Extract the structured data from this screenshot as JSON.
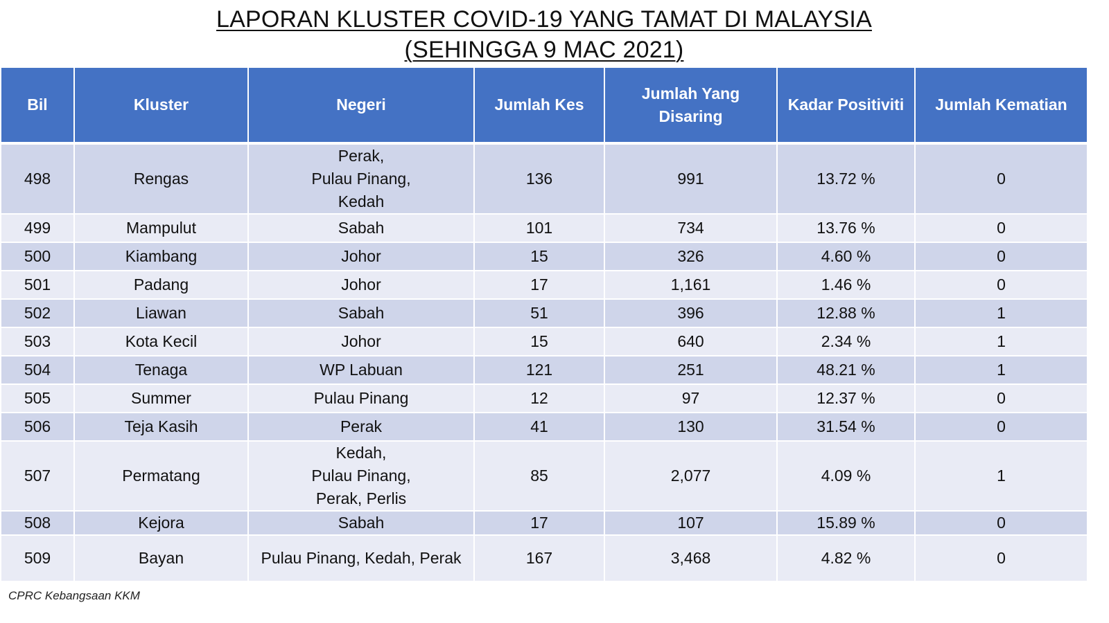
{
  "title": {
    "line1": "LAPORAN KLUSTER COVID-19 YANG TAMAT DI MALAYSIA",
    "line2": "(SEHINGGA 9 MAC 2021)"
  },
  "colors": {
    "header_bg": "#4472c4",
    "row_odd": "#cfd5ea",
    "row_even": "#e9ebf5"
  },
  "table": {
    "headers": {
      "bil": "Bil",
      "kluster": "Kluster",
      "negeri": "Negeri",
      "jumlah_kes": "Jumlah Kes",
      "jumlah_disaring_1": "Jumlah Yang",
      "jumlah_disaring_2": "Disaring",
      "kadar_positiviti": "Kadar Positiviti",
      "jumlah_kematian": "Jumlah Kematian"
    },
    "rows": [
      {
        "bil": "498",
        "kluster": "Rengas",
        "negeri": [
          "Perak,",
          "Pulau Pinang,",
          "Kedah"
        ],
        "kes": "136",
        "disaring": "991",
        "positiviti": "13.72 %",
        "kematian": "0"
      },
      {
        "bil": "499",
        "kluster": "Mampulut",
        "negeri": [
          "Sabah"
        ],
        "kes": "101",
        "disaring": "734",
        "positiviti": "13.76 %",
        "kematian": "0"
      },
      {
        "bil": "500",
        "kluster": "Kiambang",
        "negeri": [
          "Johor"
        ],
        "kes": "15",
        "disaring": "326",
        "positiviti": "4.60 %",
        "kematian": "0"
      },
      {
        "bil": "501",
        "kluster": "Padang",
        "negeri": [
          "Johor"
        ],
        "kes": "17",
        "disaring": "1,161",
        "positiviti": "1.46 %",
        "kematian": "0"
      },
      {
        "bil": "502",
        "kluster": "Liawan",
        "negeri": [
          "Sabah"
        ],
        "kes": "51",
        "disaring": "396",
        "positiviti": "12.88 %",
        "kematian": "1"
      },
      {
        "bil": "503",
        "kluster": "Kota Kecil",
        "negeri": [
          "Johor"
        ],
        "kes": "15",
        "disaring": "640",
        "positiviti": "2.34 %",
        "kematian": "1"
      },
      {
        "bil": "504",
        "kluster": "Tenaga",
        "negeri": [
          "WP Labuan"
        ],
        "kes": "121",
        "disaring": "251",
        "positiviti": "48.21 %",
        "kematian": "1"
      },
      {
        "bil": "505",
        "kluster": "Summer",
        "negeri": [
          "Pulau Pinang"
        ],
        "kes": "12",
        "disaring": "97",
        "positiviti": "12.37 %",
        "kematian": "0"
      },
      {
        "bil": "506",
        "kluster": "Teja Kasih",
        "negeri": [
          "Perak"
        ],
        "kes": "41",
        "disaring": "130",
        "positiviti": "31.54 %",
        "kematian": "0"
      },
      {
        "bil": "507",
        "kluster": "Permatang",
        "negeri": [
          "Kedah,",
          "Pulau Pinang,",
          "Perak, Perlis"
        ],
        "kes": "85",
        "disaring": "2,077",
        "positiviti": "4.09 %",
        "kematian": "1"
      },
      {
        "bil": "508",
        "kluster": "Kejora",
        "negeri": [
          "Sabah"
        ],
        "kes": "17",
        "disaring": "107",
        "positiviti": "15.89 %",
        "kematian": "0"
      },
      {
        "bil": "509",
        "kluster": "Bayan",
        "negeri": [
          "Pulau Pinang, Kedah, Perak"
        ],
        "kes": "167",
        "disaring": "3,468",
        "positiviti": "4.82 %",
        "kematian": "0"
      }
    ]
  },
  "footer": "CPRC Kebangsaan KKM"
}
